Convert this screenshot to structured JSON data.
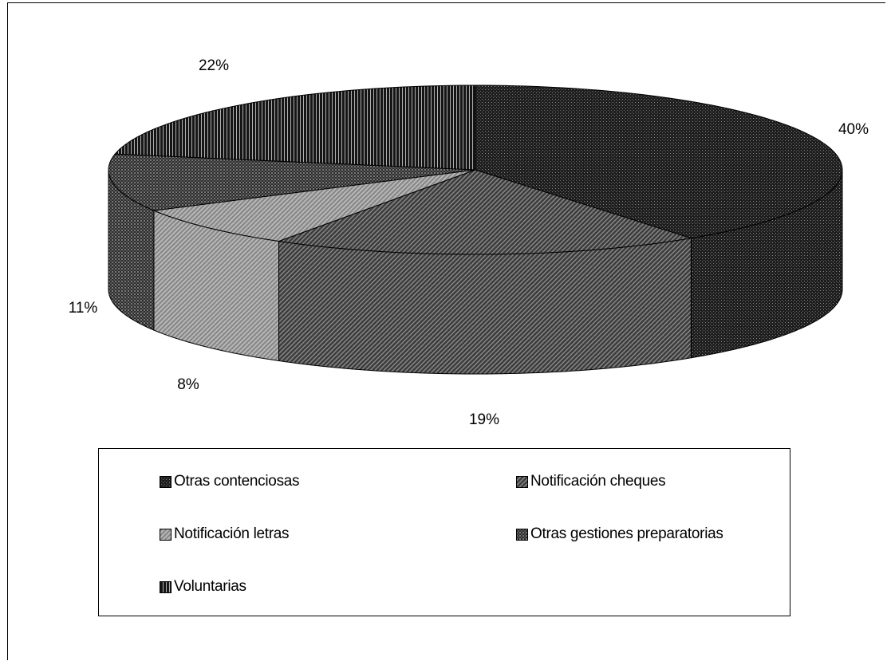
{
  "chart_data": {
    "type": "pie",
    "title": "",
    "categories": [
      "Otras contenciosas",
      "Notificación cheques",
      "Notificación letras",
      "Otras gestiones preparatorias",
      "Voluntarias"
    ],
    "values": [
      40,
      19,
      8,
      11,
      22
    ],
    "labels": [
      "40%",
      "19%",
      "8%",
      "11%",
      "22%"
    ],
    "legend_position": "bottom",
    "style": "3d-pie-patterned-grayscale"
  },
  "legend": {
    "items": [
      {
        "label": "Otras contenciosas",
        "pattern": "dark-dots"
      },
      {
        "label": "Notificación cheques",
        "pattern": "diagonal-dark"
      },
      {
        "label": "Notificación letras",
        "pattern": "diagonal-light"
      },
      {
        "label": "Otras gestiones preparatorias",
        "pattern": "cross-dots"
      },
      {
        "label": "Voluntarias",
        "pattern": "vertical-lines"
      }
    ]
  },
  "colors": {
    "dark": "#1e1e1e",
    "medium": "#5a5a5a",
    "light": "#9a9a9a",
    "crosshatch": "#2b2b2b",
    "vertical": "#161616"
  }
}
